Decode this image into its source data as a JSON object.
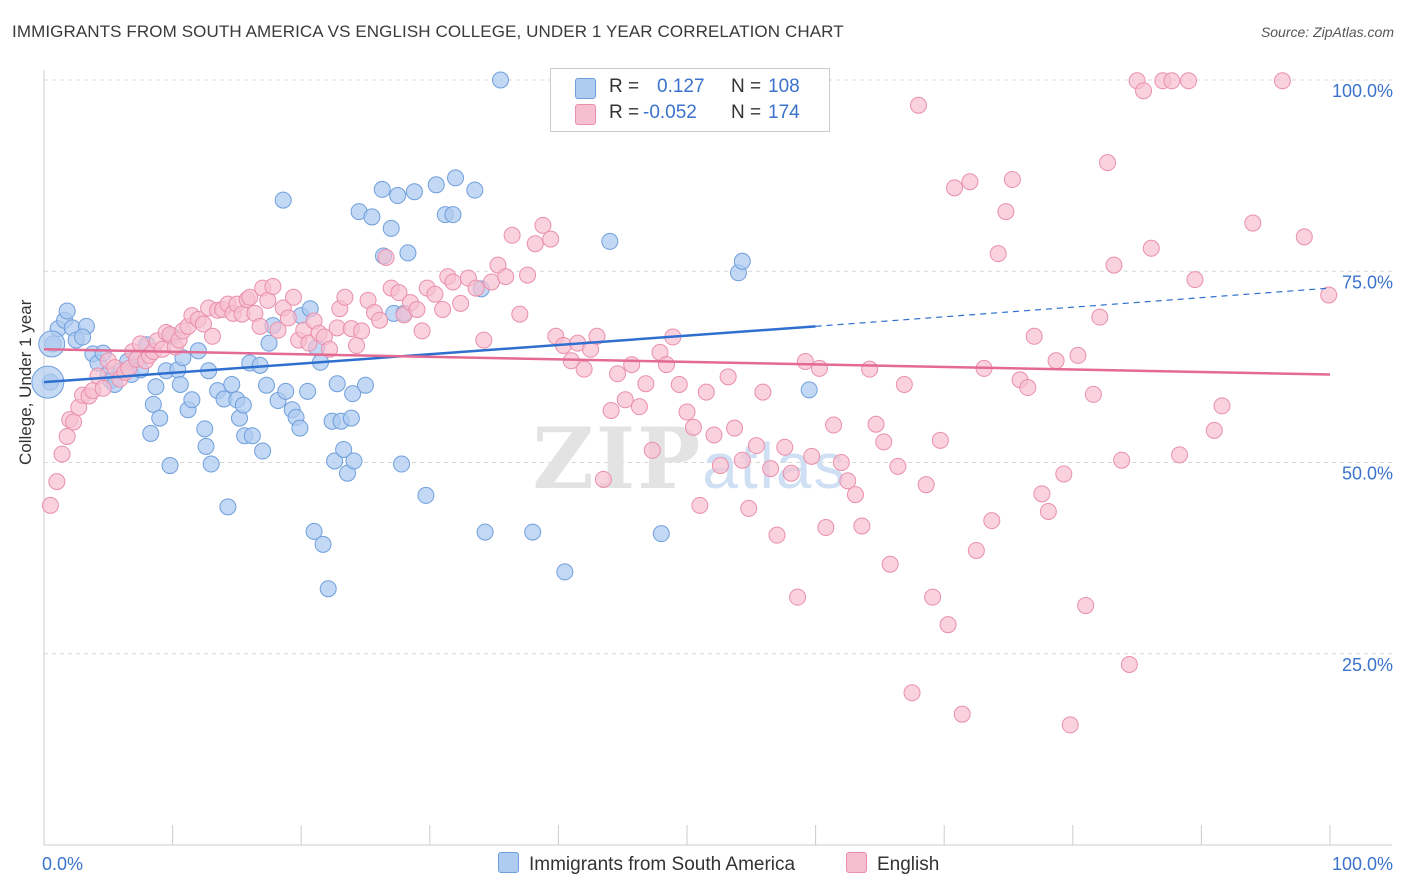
{
  "title": "IMMIGRANTS FROM SOUTH AMERICA VS ENGLISH COLLEGE, UNDER 1 YEAR CORRELATION CHART",
  "source": "Source: ZipAtlas.com",
  "legend": {
    "row1": {
      "r_label": "R =",
      "r_value": "0.127",
      "n_label": "N =",
      "n_value": "108"
    },
    "row2": {
      "r_label": "R =",
      "r_value": "-0.052",
      "n_label": "N =",
      "n_value": "174"
    }
  },
  "colors": {
    "blue_fill": "#aecbf0",
    "blue_stroke": "#6f9fdc",
    "blue_line": "#2f6fcf",
    "pink_fill": "#f6bfd0",
    "pink_stroke": "#ea8fac",
    "pink_line": "#e46a93",
    "grid": "#d8d8d8",
    "tick_label": "#3b72cc"
  },
  "chart_data": {
    "type": "scatter",
    "title": "IMMIGRANTS FROM SOUTH AMERICA VS ENGLISH COLLEGE, UNDER 1 YEAR CORRELATION CHART",
    "xlabel": "",
    "ylabel": "College, Under 1 year",
    "xlim": [
      0,
      100
    ],
    "ylim": [
      0,
      102
    ],
    "x_tick_labels": [
      "0.0%",
      "100.0%"
    ],
    "y_ticks": [
      25,
      50,
      75,
      100
    ],
    "y_tick_labels": [
      "25.0%",
      "50.0%",
      "75.0%",
      "100.0%"
    ],
    "grid": true,
    "legend_position": "top-center",
    "watermark": "ZIPatlas",
    "series": [
      {
        "name": "Immigrants from South America",
        "color": "#aecbf0",
        "R": 0.127,
        "N": 108,
        "trend": {
          "x": [
            0,
            60
          ],
          "y": [
            60.5,
            67.8
          ],
          "dashed_to": [
            100,
            72.8
          ]
        },
        "points": [
          [
            0.5,
            60.5
          ],
          [
            0.7,
            65.5
          ],
          [
            1.1,
            67.5
          ],
          [
            1.6,
            68.6
          ],
          [
            1.8,
            69.8
          ],
          [
            2.2,
            67.6
          ],
          [
            2.5,
            66.0
          ],
          [
            3.3,
            67.8
          ],
          [
            3.0,
            66.4
          ],
          [
            3.8,
            64.2
          ],
          [
            4.2,
            63.0
          ],
          [
            4.6,
            64.3
          ],
          [
            5.0,
            61.6
          ],
          [
            5.2,
            60.7
          ],
          [
            5.5,
            60.2
          ],
          [
            6.0,
            62.0
          ],
          [
            6.5,
            63.2
          ],
          [
            6.8,
            61.5
          ],
          [
            7.3,
            63.8
          ],
          [
            7.5,
            62.1
          ],
          [
            8.0,
            65.4
          ],
          [
            8.3,
            53.8
          ],
          [
            8.5,
            57.6
          ],
          [
            8.7,
            59.9
          ],
          [
            9.0,
            55.8
          ],
          [
            9.5,
            62.0
          ],
          [
            9.8,
            49.6
          ],
          [
            10.0,
            66.5
          ],
          [
            10.4,
            62.1
          ],
          [
            10.6,
            60.2
          ],
          [
            10.8,
            63.7
          ],
          [
            11.2,
            56.9
          ],
          [
            11.5,
            58.2
          ],
          [
            12.0,
            64.6
          ],
          [
            12.6,
            52.1
          ],
          [
            12.5,
            54.4
          ],
          [
            12.8,
            62.0
          ],
          [
            13.0,
            49.8
          ],
          [
            13.5,
            59.4
          ],
          [
            14.0,
            58.3
          ],
          [
            14.3,
            44.2
          ],
          [
            14.6,
            60.2
          ],
          [
            15.0,
            58.2
          ],
          [
            15.2,
            55.8
          ],
          [
            15.5,
            57.5
          ],
          [
            15.6,
            53.5
          ],
          [
            16.0,
            63.0
          ],
          [
            16.2,
            53.5
          ],
          [
            16.8,
            62.7
          ],
          [
            17.0,
            51.5
          ],
          [
            17.3,
            60.1
          ],
          [
            17.5,
            65.6
          ],
          [
            17.8,
            67.9
          ],
          [
            18.2,
            58.1
          ],
          [
            18.6,
            84.3
          ],
          [
            18.8,
            59.3
          ],
          [
            19.3,
            56.9
          ],
          [
            19.6,
            55.9
          ],
          [
            19.9,
            54.5
          ],
          [
            20.0,
            69.2
          ],
          [
            20.5,
            59.3
          ],
          [
            20.7,
            70.1
          ],
          [
            21.0,
            41.0
          ],
          [
            21.2,
            65.0
          ],
          [
            21.5,
            63.1
          ],
          [
            21.7,
            39.3
          ],
          [
            22.1,
            33.5
          ],
          [
            22.4,
            55.4
          ],
          [
            22.6,
            50.2
          ],
          [
            22.8,
            60.3
          ],
          [
            23.1,
            55.4
          ],
          [
            23.3,
            51.7
          ],
          [
            23.6,
            48.6
          ],
          [
            23.9,
            55.8
          ],
          [
            24.1,
            50.2
          ],
          [
            24.0,
            59.0
          ],
          [
            24.5,
            82.8
          ],
          [
            25.0,
            60.1
          ],
          [
            25.5,
            82.1
          ],
          [
            26.3,
            85.7
          ],
          [
            26.4,
            77.0
          ],
          [
            27.0,
            80.6
          ],
          [
            27.2,
            69.5
          ],
          [
            27.5,
            84.9
          ],
          [
            27.8,
            49.8
          ],
          [
            28.0,
            69.5
          ],
          [
            28.3,
            77.4
          ],
          [
            28.8,
            85.4
          ],
          [
            29.7,
            45.7
          ],
          [
            30.5,
            86.3
          ],
          [
            31.2,
            82.4
          ],
          [
            31.8,
            82.4
          ],
          [
            32.0,
            87.2
          ],
          [
            33.5,
            85.6
          ],
          [
            34.0,
            72.7
          ],
          [
            34.3,
            40.9
          ],
          [
            35.5,
            100.0
          ],
          [
            38.0,
            40.9
          ],
          [
            40.5,
            35.7
          ],
          [
            44.0,
            78.9
          ],
          [
            48.0,
            40.7
          ],
          [
            54.0,
            74.8
          ],
          [
            54.3,
            76.3
          ],
          [
            59.5,
            59.5
          ]
        ]
      },
      {
        "name": "English",
        "color": "#f6bfd0",
        "R": -0.052,
        "N": 174,
        "trend": {
          "x": [
            0,
            100
          ],
          "y": [
            64.8,
            61.5
          ]
        },
        "points": [
          [
            0.5,
            44.4
          ],
          [
            1.0,
            47.5
          ],
          [
            1.4,
            51.1
          ],
          [
            1.8,
            53.4
          ],
          [
            2.0,
            55.6
          ],
          [
            2.3,
            55.3
          ],
          [
            2.7,
            57.2
          ],
          [
            3.0,
            58.8
          ],
          [
            3.5,
            58.7
          ],
          [
            3.8,
            59.4
          ],
          [
            4.2,
            61.3
          ],
          [
            4.6,
            59.7
          ],
          [
            5.0,
            63.3
          ],
          [
            5.5,
            62.4
          ],
          [
            5.9,
            60.9
          ],
          [
            6.3,
            61.8
          ],
          [
            6.6,
            62.3
          ],
          [
            6.9,
            64.5
          ],
          [
            7.2,
            63.5
          ],
          [
            7.5,
            65.5
          ],
          [
            7.9,
            63.3
          ],
          [
            8.2,
            64.0
          ],
          [
            8.5,
            64.5
          ],
          [
            8.8,
            65.9
          ],
          [
            9.2,
            64.8
          ],
          [
            9.5,
            67.0
          ],
          [
            9.8,
            66.7
          ],
          [
            10.2,
            65.1
          ],
          [
            10.5,
            66.0
          ],
          [
            10.8,
            67.2
          ],
          [
            11.2,
            67.8
          ],
          [
            11.5,
            69.2
          ],
          [
            12.0,
            68.7
          ],
          [
            12.4,
            68.1
          ],
          [
            12.8,
            70.2
          ],
          [
            13.1,
            66.5
          ],
          [
            13.5,
            69.9
          ],
          [
            13.9,
            70.0
          ],
          [
            14.3,
            70.7
          ],
          [
            14.7,
            69.5
          ],
          [
            15.0,
            70.7
          ],
          [
            15.4,
            69.4
          ],
          [
            15.8,
            71.3
          ],
          [
            16.0,
            71.6
          ],
          [
            16.4,
            69.5
          ],
          [
            16.8,
            67.8
          ],
          [
            17.0,
            72.8
          ],
          [
            17.4,
            71.2
          ],
          [
            17.8,
            73.0
          ],
          [
            18.2,
            67.3
          ],
          [
            18.6,
            70.2
          ],
          [
            19.0,
            68.9
          ],
          [
            19.4,
            71.6
          ],
          [
            19.8,
            66.0
          ],
          [
            20.2,
            67.3
          ],
          [
            20.6,
            65.6
          ],
          [
            21.0,
            68.5
          ],
          [
            21.4,
            66.9
          ],
          [
            21.8,
            66.4
          ],
          [
            22.2,
            64.8
          ],
          [
            22.8,
            67.6
          ],
          [
            23.0,
            70.1
          ],
          [
            23.4,
            71.6
          ],
          [
            23.9,
            67.5
          ],
          [
            24.3,
            65.3
          ],
          [
            24.7,
            67.2
          ],
          [
            25.2,
            71.2
          ],
          [
            25.7,
            69.6
          ],
          [
            26.1,
            68.6
          ],
          [
            26.6,
            76.8
          ],
          [
            27.0,
            72.8
          ],
          [
            27.6,
            72.2
          ],
          [
            28.0,
            69.3
          ],
          [
            28.5,
            70.9
          ],
          [
            29.0,
            70.0
          ],
          [
            29.4,
            67.2
          ],
          [
            29.8,
            72.8
          ],
          [
            30.4,
            72.0
          ],
          [
            31.0,
            70.0
          ],
          [
            31.4,
            74.3
          ],
          [
            31.8,
            73.6
          ],
          [
            32.4,
            70.8
          ],
          [
            33.0,
            74.1
          ],
          [
            33.6,
            72.8
          ],
          [
            34.2,
            66.0
          ],
          [
            34.8,
            73.6
          ],
          [
            35.3,
            75.8
          ],
          [
            35.9,
            74.3
          ],
          [
            36.4,
            79.7
          ],
          [
            37.0,
            69.4
          ],
          [
            37.6,
            74.5
          ],
          [
            38.2,
            78.6
          ],
          [
            38.8,
            81.0
          ],
          [
            39.4,
            79.2
          ],
          [
            39.8,
            66.5
          ],
          [
            40.4,
            65.3
          ],
          [
            41.0,
            63.3
          ],
          [
            41.5,
            65.6
          ],
          [
            42.0,
            62.2
          ],
          [
            42.5,
            64.8
          ],
          [
            43.0,
            66.5
          ],
          [
            43.5,
            47.8
          ],
          [
            44.1,
            56.8
          ],
          [
            44.6,
            61.6
          ],
          [
            45.2,
            58.2
          ],
          [
            45.7,
            62.8
          ],
          [
            46.3,
            57.3
          ],
          [
            46.8,
            60.3
          ],
          [
            47.3,
            51.6
          ],
          [
            47.9,
            64.4
          ],
          [
            48.4,
            62.8
          ],
          [
            48.9,
            66.4
          ],
          [
            49.4,
            60.2
          ],
          [
            50.0,
            56.6
          ],
          [
            50.5,
            54.6
          ],
          [
            51.0,
            44.4
          ],
          [
            51.5,
            59.2
          ],
          [
            52.1,
            53.6
          ],
          [
            52.6,
            49.6
          ],
          [
            53.2,
            61.2
          ],
          [
            53.7,
            54.5
          ],
          [
            54.3,
            50.3
          ],
          [
            54.8,
            44.0
          ],
          [
            55.4,
            52.2
          ],
          [
            55.9,
            59.2
          ],
          [
            56.5,
            49.2
          ],
          [
            57.0,
            40.5
          ],
          [
            57.6,
            52.0
          ],
          [
            58.1,
            48.6
          ],
          [
            58.6,
            32.4
          ],
          [
            59.2,
            63.2
          ],
          [
            59.7,
            50.8
          ],
          [
            60.3,
            62.3
          ],
          [
            60.8,
            41.5
          ],
          [
            61.4,
            54.9
          ],
          [
            62.0,
            50.0
          ],
          [
            62.5,
            47.6
          ],
          [
            63.1,
            45.8
          ],
          [
            63.6,
            41.7
          ],
          [
            64.2,
            62.2
          ],
          [
            64.7,
            55.0
          ],
          [
            65.3,
            52.7
          ],
          [
            65.8,
            36.7
          ],
          [
            66.4,
            49.5
          ],
          [
            66.9,
            60.2
          ],
          [
            67.5,
            19.9
          ],
          [
            68.0,
            96.7
          ],
          [
            68.6,
            47.1
          ],
          [
            69.1,
            32.4
          ],
          [
            69.7,
            52.9
          ],
          [
            70.3,
            28.8
          ],
          [
            70.8,
            85.9
          ],
          [
            71.4,
            17.1
          ],
          [
            72.0,
            86.7
          ],
          [
            72.5,
            38.5
          ],
          [
            73.1,
            62.3
          ],
          [
            73.7,
            42.4
          ],
          [
            74.2,
            77.3
          ],
          [
            74.8,
            82.8
          ],
          [
            75.3,
            87.0
          ],
          [
            75.9,
            60.8
          ],
          [
            76.5,
            59.8
          ],
          [
            77.0,
            66.5
          ],
          [
            77.6,
            45.9
          ],
          [
            78.1,
            43.6
          ],
          [
            78.7,
            63.3
          ],
          [
            79.3,
            48.5
          ],
          [
            79.8,
            15.7
          ],
          [
            80.4,
            64.0
          ],
          [
            81.0,
            31.3
          ],
          [
            81.6,
            58.9
          ],
          [
            82.1,
            69.0
          ],
          [
            82.7,
            89.2
          ],
          [
            83.2,
            75.8
          ],
          [
            83.8,
            50.3
          ],
          [
            84.4,
            23.6
          ],
          [
            85.0,
            99.9
          ],
          [
            85.5,
            98.6
          ],
          [
            86.1,
            78.0
          ],
          [
            87.0,
            99.9
          ],
          [
            87.7,
            99.9
          ],
          [
            88.3,
            51.0
          ],
          [
            89.0,
            99.9
          ],
          [
            89.5,
            73.9
          ],
          [
            91.0,
            54.2
          ],
          [
            91.6,
            57.4
          ],
          [
            94.0,
            81.3
          ],
          [
            96.3,
            99.9
          ],
          [
            98.0,
            79.5
          ],
          [
            99.9,
            71.9
          ]
        ]
      }
    ]
  },
  "bottom_legend": {
    "blue_label": "Immigrants from South America",
    "pink_label": "English"
  }
}
